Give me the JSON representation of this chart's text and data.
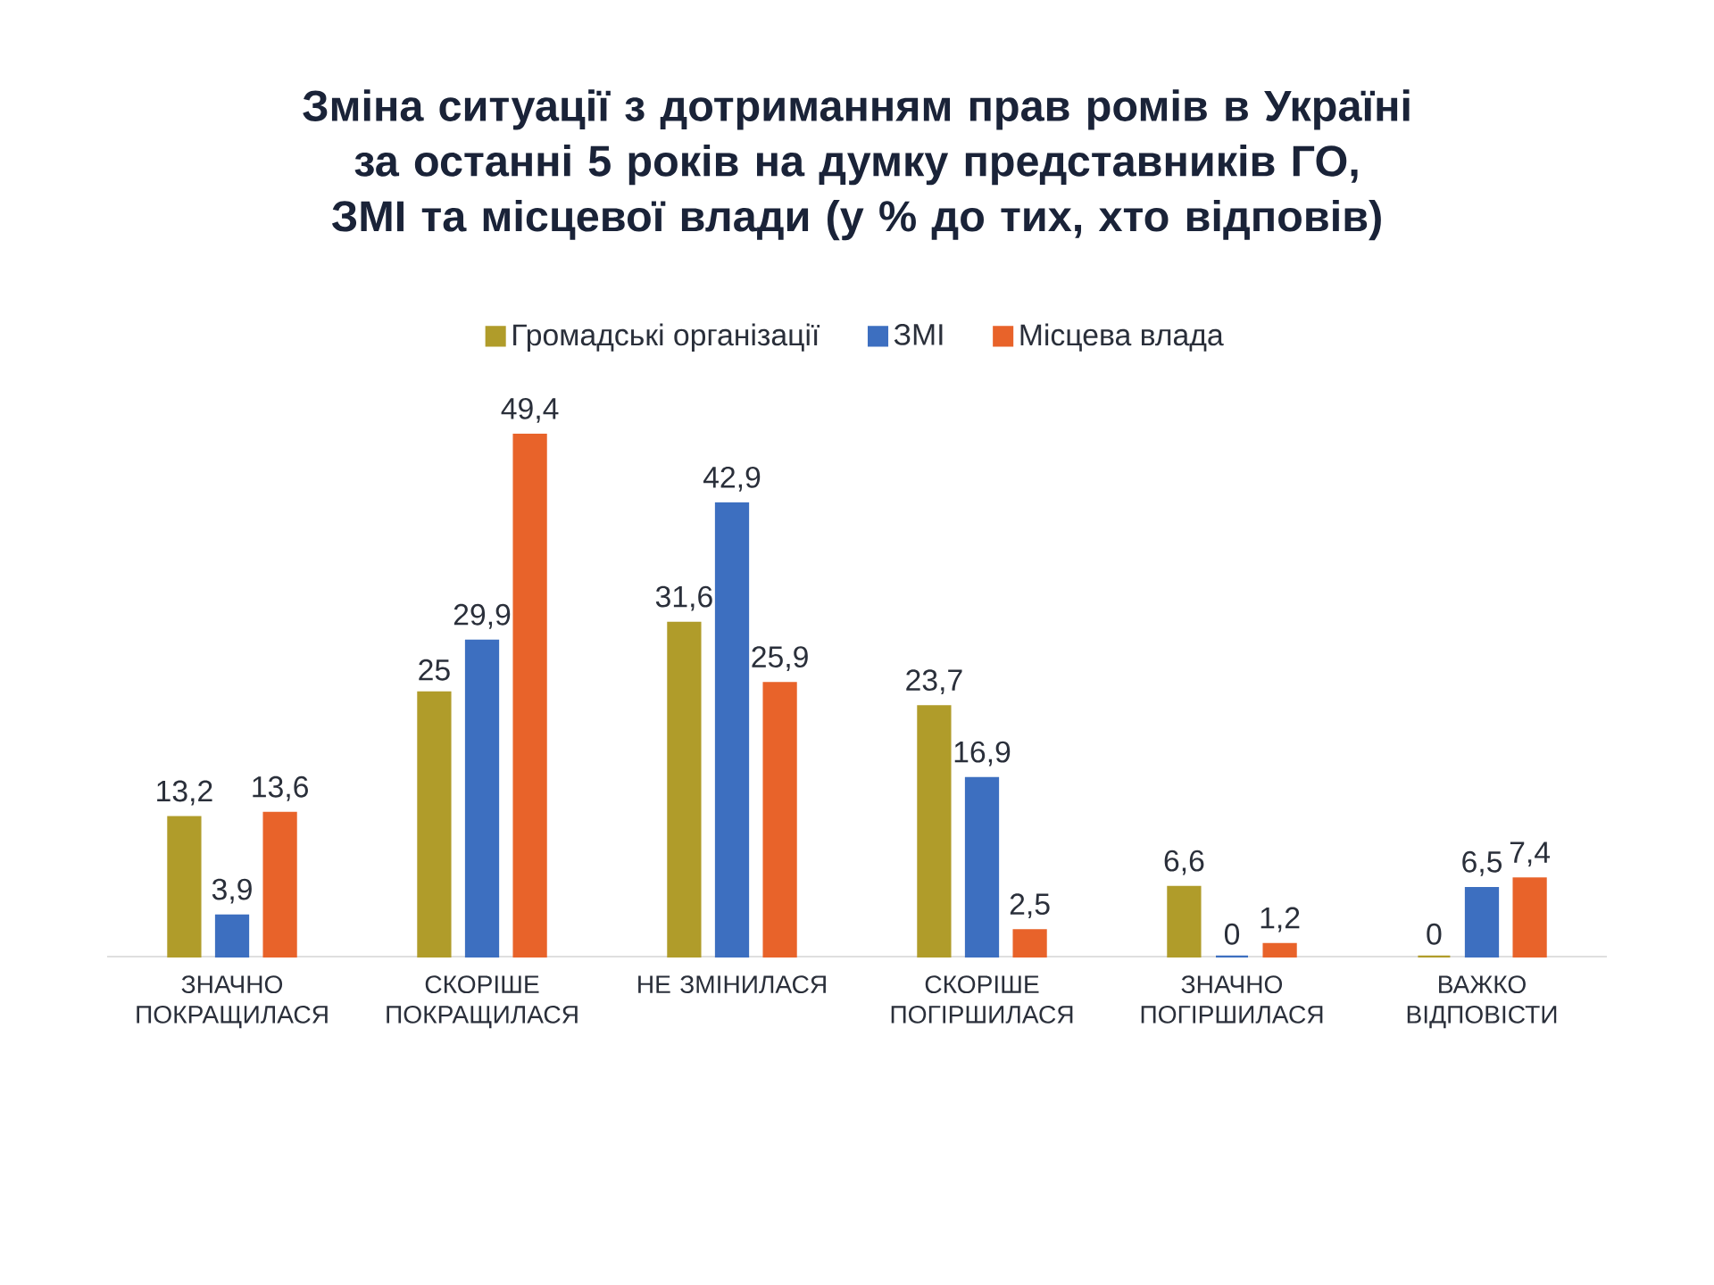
{
  "chart_data": {
    "type": "bar",
    "title": "Зміна ситуації з дотриманням прав ромів в Україні за останні 5 років на думку представників ГО, ЗМІ та місцевої влади (у % до тих, хто відповів)",
    "categories": [
      "ЗНАЧНО ПОКРАЩИЛАСЯ",
      "СКОРІШЕ ПОКРАЩИЛАСЯ",
      "НЕ ЗМІНИЛАСЯ",
      "СКОРІШЕ ПОГІРШИЛАСЯ",
      "ЗНАЧНО ПОГІРШИЛАСЯ",
      "ВАЖКО ВІДПОВІСТИ"
    ],
    "series": [
      {
        "name": "Громадські організації",
        "color": "#b09c2a",
        "values": [
          13.2,
          25,
          31.6,
          23.7,
          6.6,
          0
        ],
        "value_labels": [
          "13,2",
          "25",
          "31,6",
          "23,7",
          "6,6",
          "0"
        ]
      },
      {
        "name": "ЗМІ",
        "color": "#3d6fc0",
        "values": [
          3.9,
          29.9,
          42.9,
          16.9,
          0,
          6.5
        ],
        "value_labels": [
          "3,9",
          "29,9",
          "42,9",
          "16,9",
          "0",
          "6,5"
        ]
      },
      {
        "name": "Місцева влада",
        "color": "#e8632a",
        "values": [
          13.6,
          49.4,
          25.9,
          2.5,
          1.2,
          7.4
        ],
        "value_labels": [
          "13,6",
          "49,4",
          "25,9",
          "2,5",
          "1,2",
          "7,4"
        ]
      }
    ],
    "ylim": [
      0,
      50
    ],
    "tick_labels": "x",
    "legend": "top"
  }
}
